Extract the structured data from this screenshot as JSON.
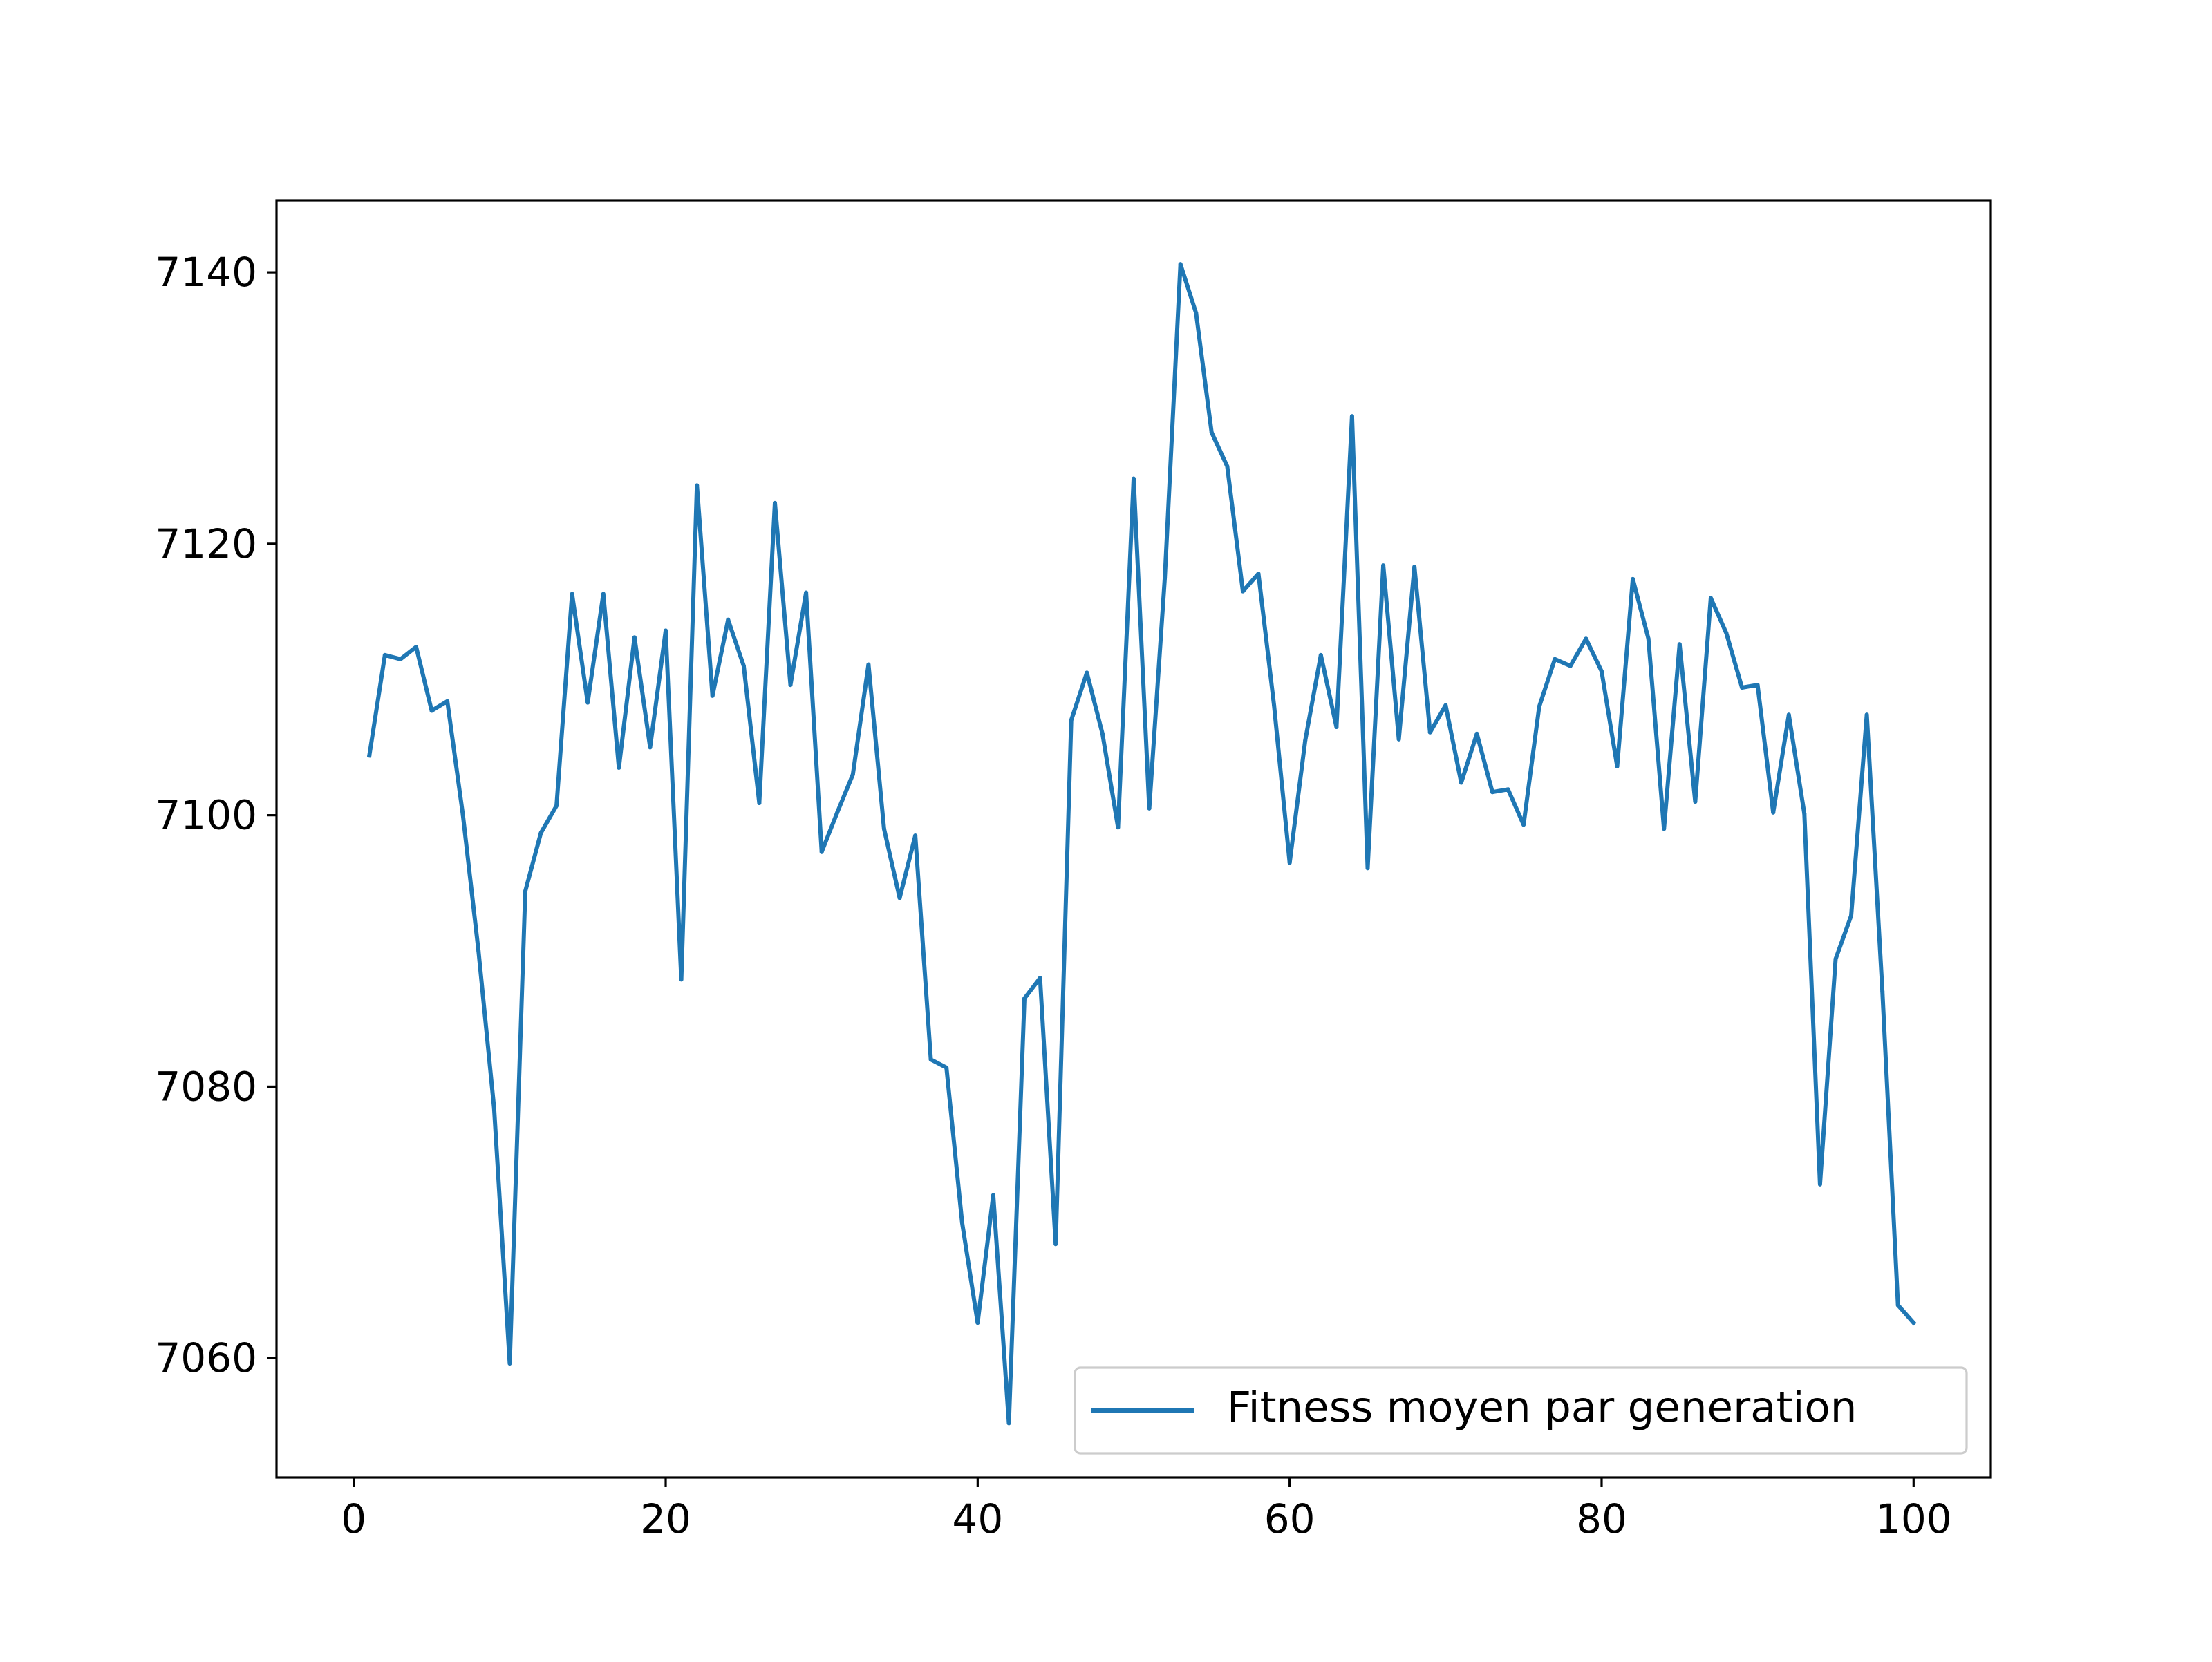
{
  "chart_data": {
    "type": "line",
    "title": "",
    "xlabel": "",
    "ylabel": "",
    "xlim": [
      -4.95,
      104.95
    ],
    "ylim": [
      7051.2,
      7145.3
    ],
    "xticks": [
      0,
      20,
      40,
      60,
      80,
      100
    ],
    "yticks": [
      7060,
      7080,
      7100,
      7120,
      7140
    ],
    "grid": false,
    "legend": {
      "position": "lower-right"
    },
    "series": [
      {
        "name": "Fitness moyen par generation",
        "color": "#1f77b4",
        "x": [
          1,
          2,
          3,
          4,
          5,
          6,
          7,
          8,
          9,
          10,
          11,
          12,
          13,
          14,
          15,
          16,
          17,
          18,
          19,
          20,
          21,
          22,
          23,
          24,
          25,
          26,
          27,
          28,
          29,
          30,
          31,
          32,
          33,
          34,
          35,
          36,
          37,
          38,
          39,
          40,
          41,
          42,
          43,
          44,
          45,
          46,
          47,
          48,
          49,
          50,
          51,
          52,
          53,
          54,
          55,
          56,
          57,
          58,
          59,
          60,
          61,
          62,
          63,
          64,
          65,
          66,
          67,
          68,
          69,
          70,
          71,
          72,
          73,
          74,
          75,
          76,
          77,
          78,
          79,
          80,
          81,
          82,
          83,
          84,
          85,
          86,
          87,
          88,
          89,
          90,
          91,
          92,
          93,
          94,
          95,
          96,
          97,
          98,
          99,
          100
        ],
        "values": [
          7104.4,
          7111.8,
          7111.5,
          7112.4,
          7107.7,
          7108.4,
          7100.0,
          7090.0,
          7078.4,
          7059.6,
          7094.4,
          7098.7,
          7100.7,
          7116.3,
          7108.3,
          7116.3,
          7103.5,
          7113.1,
          7105.0,
          7113.6,
          7087.9,
          7124.3,
          7108.8,
          7114.4,
          7111.0,
          7100.9,
          7123.0,
          7109.6,
          7116.4,
          7097.3,
          7100.2,
          7103.0,
          7111.1,
          7099.0,
          7093.9,
          7098.5,
          7082.0,
          7081.4,
          7070.0,
          7062.6,
          7072.0,
          7055.2,
          7086.5,
          7088.0,
          7068.4,
          7107.0,
          7110.5,
          7106.0,
          7099.1,
          7124.8,
          7100.5,
          7117.5,
          7140.6,
          7137.0,
          7128.2,
          7125.7,
          7116.5,
          7117.8,
          7108.1,
          7096.5,
          7105.5,
          7111.8,
          7106.5,
          7129.4,
          7096.1,
          7118.4,
          7105.6,
          7118.3,
          7106.1,
          7108.1,
          7102.4,
          7106.0,
          7101.7,
          7101.9,
          7099.3,
          7108.0,
          7111.5,
          7111.0,
          7113.0,
          7110.6,
          7103.6,
          7117.4,
          7113.0,
          7099.0,
          7112.6,
          7101.0,
          7116.0,
          7113.4,
          7109.4,
          7109.6,
          7100.2,
          7107.4,
          7100.1,
          7072.8,
          7089.4,
          7092.6,
          7107.4,
          7087.0,
          7063.9,
          7062.6
        ]
      }
    ]
  }
}
